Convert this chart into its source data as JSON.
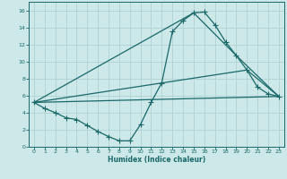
{
  "xlabel": "Humidex (Indice chaleur)",
  "xlim": [
    -0.5,
    23.5
  ],
  "ylim": [
    0,
    17
  ],
  "xticks": [
    0,
    1,
    2,
    3,
    4,
    5,
    6,
    7,
    8,
    9,
    10,
    11,
    12,
    13,
    14,
    15,
    16,
    17,
    18,
    19,
    20,
    21,
    22,
    23
  ],
  "yticks": [
    0,
    2,
    4,
    6,
    8,
    10,
    12,
    14,
    16
  ],
  "bg_color": "#cce8e8",
  "grid_color": "#aacece",
  "line_color": "#1a6868",
  "line1_x": [
    0,
    1,
    2,
    3,
    4,
    5,
    6,
    7,
    8,
    9,
    10,
    11,
    12,
    13,
    14,
    15,
    16,
    17,
    18,
    19,
    20,
    21,
    22,
    23
  ],
  "line1_y": [
    5.2,
    4.5,
    4.0,
    3.4,
    3.2,
    2.5,
    1.8,
    1.2,
    0.7,
    0.7,
    2.6,
    5.2,
    7.5,
    13.5,
    14.8,
    15.7,
    15.8,
    14.3,
    12.3,
    10.7,
    9.0,
    7.0,
    6.2,
    5.9
  ],
  "line2_x": [
    0,
    15,
    19,
    23
  ],
  "line2_y": [
    5.2,
    15.7,
    10.7,
    5.9
  ],
  "line3_x": [
    0,
    20,
    23
  ],
  "line3_y": [
    5.2,
    9.0,
    5.9
  ],
  "line4_x": [
    0,
    23
  ],
  "line4_y": [
    5.2,
    5.9
  ]
}
